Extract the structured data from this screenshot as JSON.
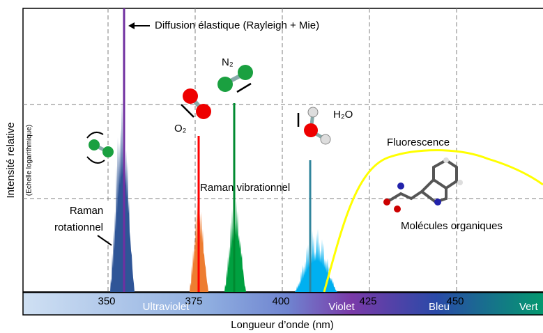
{
  "chart_data": {
    "type": "spectrum",
    "x_label": "Longueur d’onde (nm)",
    "y_label": "Intensité relative",
    "y_label_note": "(Echelle logarithmique)",
    "xlim": [
      325.6,
      474.8
    ],
    "xticks": [
      350,
      375,
      400,
      425,
      450
    ],
    "grid": true,
    "color_bar_labels": [
      "Ultraviolet",
      "Violet",
      "Bleu",
      "Vert"
    ],
    "annotations": [
      "Diffusion élastique (Rayleigh + Mie)",
      "N₂",
      "O₂",
      "H₂O",
      "Fluorescence",
      "Raman vibrationnel",
      "Raman",
      "rotationnel",
      "Molécules organiques"
    ]
  }
}
